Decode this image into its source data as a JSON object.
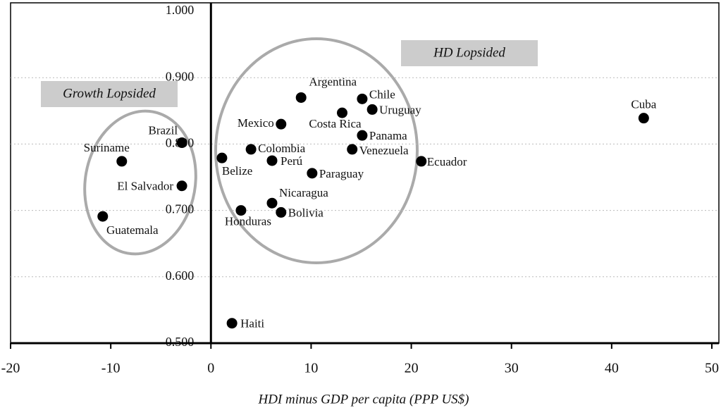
{
  "chart_data": {
    "type": "scatter",
    "x_label": "HDI minus GDP per capita (PPP US$)",
    "annotations": [
      "HD Lopsided",
      "Growth Lopsided"
    ],
    "labels": [
      "Cuba",
      "Argentina",
      "Chile",
      "Uruguay",
      "Costa Rica",
      "Mexico",
      "Panama",
      "Brazil",
      "Suriname",
      "Colombia",
      "Venezuela",
      "Belize",
      "Perú",
      "Ecuador",
      "Paraguay",
      "El Salvador",
      "Nicaragua",
      "Honduras",
      "Bolivia",
      "Guatemala",
      "Haiti"
    ],
    "x": [
      43.2,
      9.0,
      15.1,
      16.1,
      13.1,
      7.0,
      15.1,
      -2.9,
      -8.9,
      4.0,
      14.1,
      1.1,
      6.1,
      21.0,
      10.1,
      -2.9,
      6.1,
      3.0,
      7.0,
      -10.8,
      2.1
    ],
    "y": [
      0.839,
      0.87,
      0.868,
      0.852,
      0.847,
      0.83,
      0.813,
      0.802,
      0.774,
      0.792,
      0.792,
      0.779,
      0.775,
      0.774,
      0.756,
      0.737,
      0.711,
      0.7,
      0.697,
      0.691,
      0.53
    ],
    "color": "#000000",
    "xlim": [
      -20,
      50
    ],
    "xticks": [
      -20,
      -10,
      0,
      10,
      20,
      30,
      40,
      50
    ],
    "ylim": [
      0.5,
      1.0
    ],
    "yticks": [
      {
        "value": 0.5,
        "label": "0.500"
      },
      {
        "value": 0.6,
        "label": "0.600"
      },
      {
        "value": 0.7,
        "label": "0.700"
      },
      {
        "value": 0.8,
        "label": "0.800"
      },
      {
        "value": 0.9,
        "label": "0.900"
      },
      {
        "value": 1.0,
        "label": "1.000"
      }
    ],
    "grid": true
  }
}
